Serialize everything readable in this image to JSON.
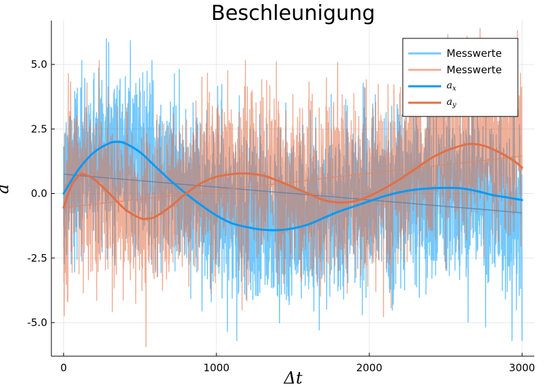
{
  "chart_data": {
    "type": "line",
    "title": "Beschleunigung",
    "xlabel": "Δt",
    "ylabel": "a",
    "xlim": [
      -80,
      3080
    ],
    "ylim": [
      -6.3,
      6.7
    ],
    "grid": true,
    "legend_position": "top-right",
    "x_ticks": [
      0,
      1000,
      2000,
      3000
    ],
    "x_tick_labels": [
      "0",
      "1000",
      "2000",
      "3000"
    ],
    "y_ticks": [
      5.0,
      2.5,
      0.0,
      -2.5,
      -5.0
    ],
    "y_tick_labels": [
      "5.0",
      "2.5",
      "0.0",
      "-2.5",
      "-5.0"
    ],
    "noise": {
      "x": [
        0,
        3000
      ],
      "ax_trend": [
        0.75,
        -0.75
      ],
      "ay_trend": [
        -0.55,
        1.45
      ],
      "ax_spread": 1.6,
      "ay_spread": 1.6,
      "ax_range": [
        -5.7,
        6.0
      ],
      "ay_range": [
        -6.1,
        6.4
      ]
    },
    "series": [
      {
        "name": "Messwerte",
        "kind": "noise-ax",
        "color": "#009AFA",
        "opacity": 0.55,
        "x": [
          0,
          250,
          500,
          750,
          1000,
          1250,
          1500,
          1750,
          2000,
          2250,
          2500,
          2750,
          3000
        ],
        "y": [
          0.75,
          0.62,
          0.5,
          0.37,
          0.25,
          0.12,
          0.0,
          -0.12,
          -0.25,
          -0.37,
          -0.5,
          -0.62,
          -0.75
        ]
      },
      {
        "name": "Messwerte",
        "kind": "noise-ay",
        "color": "#E26F46",
        "opacity": 0.55,
        "x": [
          0,
          250,
          500,
          750,
          1000,
          1250,
          1500,
          1750,
          2000,
          2250,
          2500,
          2750,
          3000
        ],
        "y": [
          -0.55,
          -0.38,
          -0.22,
          -0.05,
          0.12,
          0.28,
          0.45,
          0.62,
          0.78,
          0.95,
          1.12,
          1.28,
          1.45
        ]
      },
      {
        "name": "a_x",
        "kind": "smooth",
        "color": "#009AFA",
        "x": [
          0,
          100,
          200,
          300,
          350,
          400,
          500,
          600,
          700,
          800,
          900,
          1000,
          1100,
          1200,
          1300,
          1400,
          1500,
          1600,
          1700,
          1800,
          1900,
          2000,
          2100,
          2200,
          2300,
          2400,
          2500,
          2600,
          2700,
          2800,
          2900,
          3000
        ],
        "y": [
          0.0,
          0.95,
          1.6,
          1.95,
          2.0,
          1.95,
          1.6,
          1.05,
          0.5,
          0.0,
          -0.45,
          -0.85,
          -1.15,
          -1.3,
          -1.4,
          -1.42,
          -1.35,
          -1.2,
          -0.95,
          -0.7,
          -0.5,
          -0.3,
          -0.1,
          0.05,
          0.15,
          0.2,
          0.22,
          0.2,
          0.1,
          -0.05,
          -0.15,
          -0.25
        ]
      },
      {
        "name": "a_y",
        "kind": "smooth",
        "color": "#E26F46",
        "x": [
          0,
          50,
          100,
          130,
          200,
          300,
          400,
          500,
          550,
          600,
          700,
          800,
          900,
          1000,
          1100,
          1180,
          1300,
          1400,
          1500,
          1600,
          1700,
          1800,
          1900,
          2000,
          2100,
          2200,
          2300,
          2400,
          2500,
          2600,
          2660,
          2750,
          2850,
          2950,
          3000
        ],
        "y": [
          -0.55,
          0.3,
          0.7,
          0.75,
          0.55,
          0.0,
          -0.6,
          -0.95,
          -0.97,
          -0.9,
          -0.5,
          0.0,
          0.4,
          0.65,
          0.75,
          0.78,
          0.7,
          0.5,
          0.25,
          0.0,
          -0.25,
          -0.35,
          -0.3,
          -0.1,
          0.2,
          0.55,
          0.95,
          1.35,
          1.65,
          1.85,
          1.92,
          1.85,
          1.6,
          1.25,
          1.0
        ]
      }
    ],
    "legend": [
      {
        "label": "Messwerte",
        "kind": "text",
        "color": "#009AFA",
        "opacity": 0.55
      },
      {
        "label": "Messwerte",
        "kind": "text",
        "color": "#E26F46",
        "opacity": 0.55
      },
      {
        "label": "a",
        "sub": "x",
        "kind": "math",
        "color": "#009AFA",
        "opacity": 1
      },
      {
        "label": "a",
        "sub": "y",
        "kind": "math",
        "color": "#E26F46",
        "opacity": 1
      }
    ]
  }
}
